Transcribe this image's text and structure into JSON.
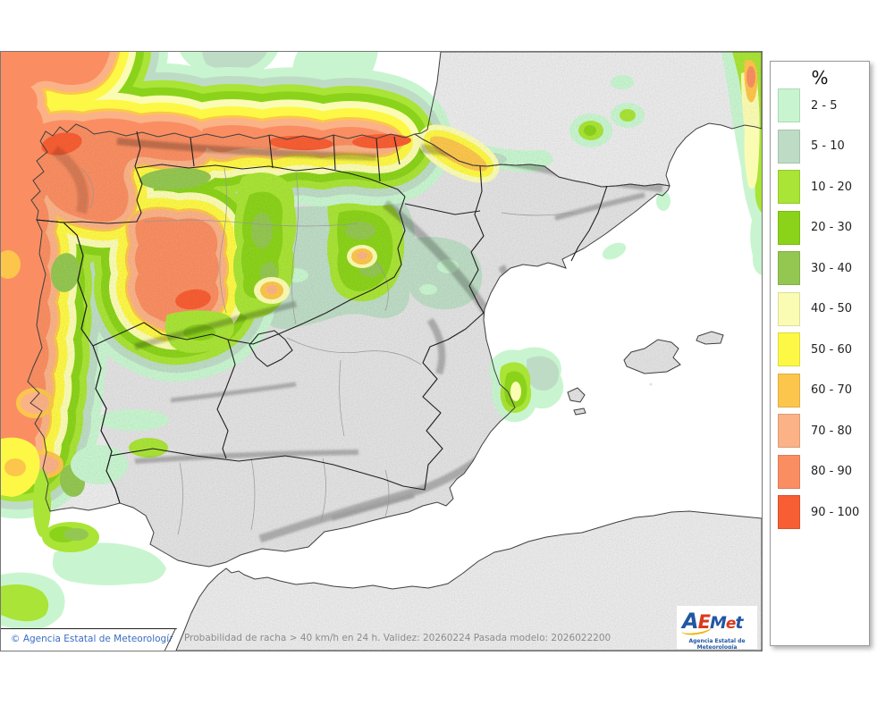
{
  "legend": {
    "title": "%",
    "items": [
      {
        "range": "2 - 5",
        "color": "#c8f5cf"
      },
      {
        "range": "5 - 10",
        "color": "#bedcc5"
      },
      {
        "range": "10 - 20",
        "color": "#a9e436"
      },
      {
        "range": "20 - 30",
        "color": "#8bd31a"
      },
      {
        "range": "30 - 40",
        "color": "#94c751"
      },
      {
        "range": "40 - 50",
        "color": "#fbfcb3"
      },
      {
        "range": "50 - 60",
        "color": "#fdf845"
      },
      {
        "range": "60 - 70",
        "color": "#fcc64c"
      },
      {
        "range": "70 - 80",
        "color": "#fbb287"
      },
      {
        "range": "80 - 90",
        "color": "#fa8e62"
      },
      {
        "range": "90 - 100",
        "color": "#f85e33"
      }
    ]
  },
  "footer": {
    "copyright": "© Agencia Estatal de Meteorología",
    "info": "Probabilidad de racha > 40 km/h en 24 h. Validez: 20260224 Pasada modelo: 2026022200"
  },
  "logo": {
    "letters": [
      {
        "ch": "A",
        "color": "#2156a4",
        "size": 24
      },
      {
        "ch": "E",
        "color": "#d93a1c",
        "size": 21
      },
      {
        "ch": "M",
        "color": "#2156a4",
        "size": 19
      },
      {
        "ch": "e",
        "color": "#d93a1c",
        "size": 17
      },
      {
        "ch": "t",
        "color": "#2156a4",
        "size": 19
      }
    ],
    "swoosh_color": "#f0b400",
    "subtitle": "Agencia Estatal de Meteorología",
    "subtitle_color": "#2156a4"
  },
  "map_colors": {
    "sea": "#ffffff",
    "spain_land": "#e2e2e2",
    "other_land": "#ebebeb",
    "portugal_land": "#ececec",
    "border_region": "#1f1f1f",
    "border_province": "#979797",
    "coast": "#3f3f3f",
    "frame": "#777777",
    "copyright_blue": "#3a6cc3",
    "footer_gray": "#8c8c8c"
  }
}
